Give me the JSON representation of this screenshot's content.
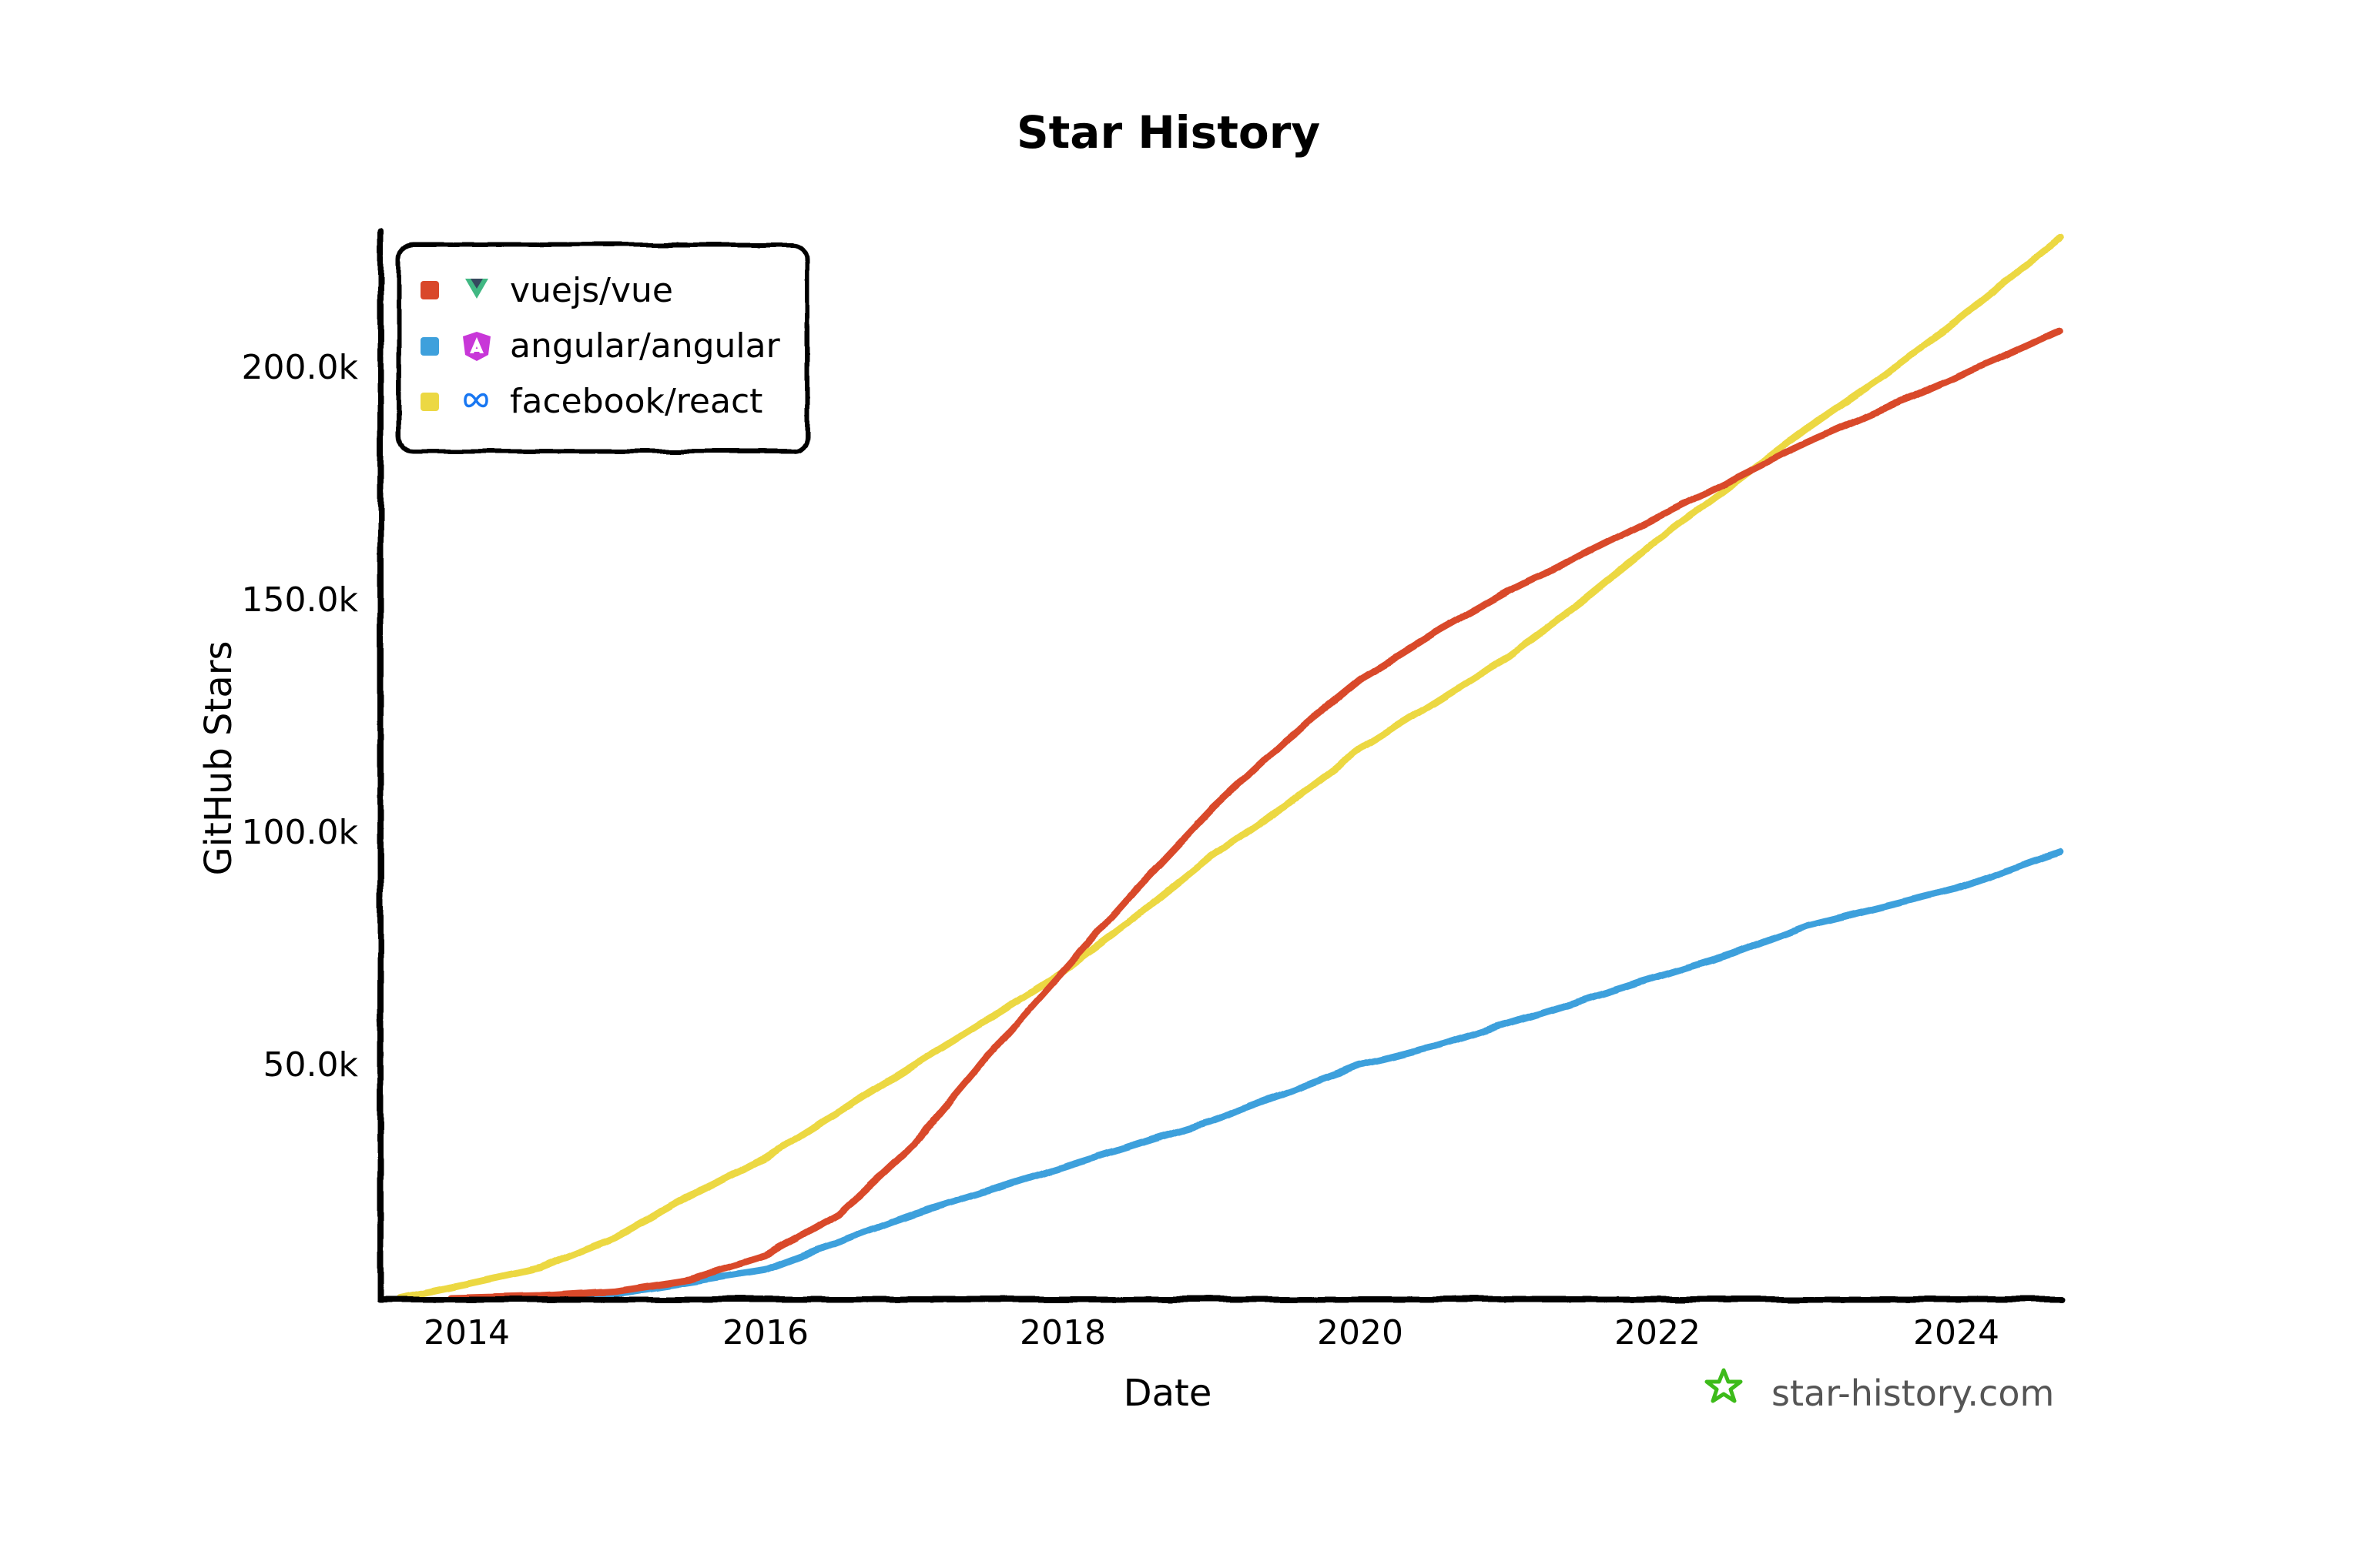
{
  "chart_data": {
    "type": "line",
    "title": "Star History",
    "xlabel": "Date",
    "ylabel": "GitHub Stars",
    "x_ticks": [
      "2014",
      "2016",
      "2018",
      "2020",
      "2022",
      "2024"
    ],
    "y_ticks": [
      "50.0k",
      "100.0k",
      "150.0k",
      "200.0k"
    ],
    "xlim": [
      2013.55,
      2024.7
    ],
    "ylim": [
      0,
      228000
    ],
    "grid": false,
    "legend_position": "upper-left",
    "style": "hand-drawn (xkcd)",
    "series": [
      {
        "name": "vuejs/vue",
        "color": "#d9482b",
        "icon": "vue-logo-icon",
        "x": [
          2013.9,
          2014.5,
          2015.0,
          2015.5,
          2016.0,
          2016.5,
          2017.0,
          2017.5,
          2018.0,
          2018.5,
          2019.0,
          2019.5,
          2020.0,
          2020.5,
          2021.0,
          2021.5,
          2022.0,
          2022.5,
          2023.0,
          2023.5,
          2024.0,
          2024.7
        ],
        "values": [
          0,
          500,
          1500,
          4000,
          9000,
          18000,
          33000,
          52000,
          70000,
          88000,
          105000,
          120000,
          133000,
          143000,
          152000,
          160000,
          168000,
          176000,
          184000,
          191000,
          198000,
          208000
        ]
      },
      {
        "name": "angular/angular",
        "color": "#3ea0dc",
        "icon": "angular-logo-icon",
        "x": [
          2014.8,
          2015.0,
          2015.5,
          2016.0,
          2016.5,
          2017.0,
          2017.5,
          2018.0,
          2018.5,
          2019.0,
          2019.5,
          2020.0,
          2020.5,
          2021.0,
          2021.5,
          2022.0,
          2022.5,
          2023.0,
          2023.5,
          2024.0,
          2024.7
        ],
        "values": [
          0,
          1000,
          3500,
          6000,
          12000,
          18000,
          23000,
          28000,
          33000,
          38000,
          44000,
          50000,
          54000,
          59000,
          64000,
          69000,
          74000,
          80000,
          84000,
          88000,
          96000
        ]
      },
      {
        "name": "facebook/react",
        "color": "#ecd843",
        "icon": "meta-logo-icon",
        "x": [
          2013.55,
          2014.0,
          2014.5,
          2015.0,
          2015.5,
          2016.0,
          2016.5,
          2017.0,
          2017.5,
          2018.0,
          2018.5,
          2019.0,
          2019.5,
          2020.0,
          2020.5,
          2021.0,
          2021.5,
          2022.0,
          2022.5,
          2023.0,
          2023.5,
          2024.0,
          2024.7
        ],
        "values": [
          0,
          3000,
          6500,
          13000,
          22000,
          30000,
          40000,
          50000,
          60000,
          70000,
          82000,
          95000,
          106000,
          118000,
          128000,
          138000,
          150000,
          163000,
          175000,
          187000,
          198000,
          210000,
          228000
        ]
      }
    ]
  },
  "header": {
    "title": "Star History"
  },
  "axes": {
    "x_label": "Date",
    "y_label": "GitHub Stars",
    "x_ticks": [
      "2014",
      "2016",
      "2018",
      "2020",
      "2022",
      "2024"
    ],
    "y_ticks": [
      "50.0k",
      "100.0k",
      "150.0k",
      "200.0k"
    ]
  },
  "legend": {
    "items": [
      {
        "label": "vuejs/vue",
        "color": "#d9482b",
        "icon": "vue-logo-icon"
      },
      {
        "label": "angular/angular",
        "color": "#3ea0dc",
        "icon": "angular-logo-icon"
      },
      {
        "label": "facebook/react",
        "color": "#ecd843",
        "icon": "meta-logo-icon"
      }
    ]
  },
  "watermark": {
    "text": "star-history.com",
    "icon_color": "#3dbb1a"
  }
}
